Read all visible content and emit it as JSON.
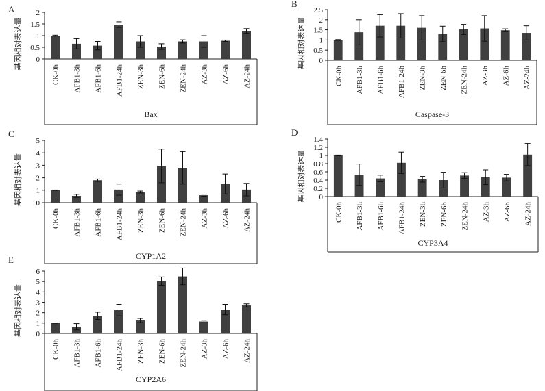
{
  "figure": {
    "colors": {
      "bar": "#404040",
      "axis": "#222222",
      "text": "#222222",
      "background": "#ffffff"
    }
  },
  "chart_data": [
    {
      "type": "bar",
      "panel_label": "A",
      "title": "Bax",
      "ylabel": "基因相对表达量",
      "xlabel": "",
      "ylim": [
        0,
        2
      ],
      "yticks": [
        0,
        0.5,
        1,
        1.5,
        2
      ],
      "ytick_labels": [
        "0",
        "0.5",
        "1",
        "1.5",
        "2"
      ],
      "categories": [
        "CK-0h",
        "AFB1-3h",
        "AFB1-6h",
        "AFB1-24h",
        "ZEN-3h",
        "ZEN-6h",
        "ZEN-24h",
        "AZ-3h",
        "AZ-6h",
        "AZ-24h"
      ],
      "values": [
        1.0,
        0.65,
        0.57,
        1.47,
        0.75,
        0.53,
        0.75,
        0.75,
        0.78,
        1.2
      ],
      "errors": [
        0.02,
        0.22,
        0.18,
        0.12,
        0.25,
        0.12,
        0.07,
        0.25,
        0.03,
        0.1
      ],
      "grid": false
    },
    {
      "type": "bar",
      "panel_label": "B",
      "title": "Caspase-3",
      "ylabel": "基因相对表达量",
      "xlabel": "",
      "ylim": [
        0,
        2.5
      ],
      "yticks": [
        0,
        0.5,
        1,
        1.5,
        2,
        2.5
      ],
      "ytick_labels": [
        "0",
        "0.5",
        "1",
        "1.5",
        "2",
        "2.5"
      ],
      "categories": [
        "CK-0h",
        "AFB1-3h",
        "AFB1-6h",
        "AFB1-24h",
        "ZEN-3h",
        "ZEN-6h",
        "ZEN-24h",
        "AZ-3h",
        "AZ-6h",
        "AZ-24h"
      ],
      "values": [
        1.0,
        1.38,
        1.7,
        1.7,
        1.6,
        1.3,
        1.52,
        1.57,
        1.48,
        1.35
      ],
      "errors": [
        0.02,
        0.62,
        0.55,
        0.6,
        0.6,
        0.38,
        0.25,
        0.63,
        0.07,
        0.35
      ],
      "grid": false
    },
    {
      "type": "bar",
      "panel_label": "C",
      "title": "CYP1A2",
      "ylabel": "基因相对表达量",
      "xlabel": "",
      "ylim": [
        0,
        5
      ],
      "yticks": [
        0,
        1,
        2,
        3,
        4,
        5
      ],
      "ytick_labels": [
        "0",
        "1",
        "2",
        "3",
        "4",
        "5"
      ],
      "categories": [
        "CK-0h",
        "AFB1-3h",
        "AFB1-6h",
        "AFB1-24h",
        "ZEN-3h",
        "ZEN-6h",
        "ZEN-24h",
        "AZ-3h",
        "AZ-6h",
        "AZ-24h"
      ],
      "values": [
        1.0,
        0.55,
        1.8,
        1.05,
        0.85,
        2.95,
        2.8,
        0.6,
        1.5,
        1.05
      ],
      "errors": [
        0.02,
        0.12,
        0.1,
        0.45,
        0.08,
        1.35,
        1.3,
        0.08,
        0.8,
        0.5
      ],
      "grid": false
    },
    {
      "type": "bar",
      "panel_label": "D",
      "title": "CYP3A4",
      "ylabel": "基因相对表达量",
      "xlabel": "",
      "ylim": [
        0,
        1.4
      ],
      "yticks": [
        0,
        0.2,
        0.4,
        0.6,
        0.8,
        1,
        1.2,
        1.4
      ],
      "ytick_labels": [
        "0",
        "0.2",
        "0.4",
        "0.6",
        "0.8",
        "1",
        "1.2",
        "1.4"
      ],
      "categories": [
        "CK-0h",
        "AFB1-3h",
        "AFB1-6h",
        "AFB1-24h",
        "ZEN-3h",
        "ZEN-6h",
        "ZEN-24h",
        "AZ-3h",
        "AZ-6h",
        "AZ-24h"
      ],
      "values": [
        1.0,
        0.53,
        0.44,
        0.82,
        0.42,
        0.4,
        0.51,
        0.47,
        0.46,
        1.02
      ],
      "errors": [
        0.01,
        0.26,
        0.08,
        0.26,
        0.07,
        0.19,
        0.07,
        0.18,
        0.08,
        0.27
      ],
      "grid": false
    },
    {
      "type": "bar",
      "panel_label": "E",
      "title": "CYP2A6",
      "ylabel": "基因相对表达量",
      "xlabel": "",
      "ylim": [
        0,
        6
      ],
      "yticks": [
        0,
        1,
        2,
        3,
        4,
        5,
        6
      ],
      "ytick_labels": [
        "0",
        "1",
        "2",
        "3",
        "4",
        "5",
        "6"
      ],
      "categories": [
        "CK-0h",
        "AFB1-3h",
        "AFB1-6h",
        "AFB1-24h",
        "ZEN-3h",
        "ZEN-6h",
        "ZEN-24h",
        "AZ-3h",
        "AZ-6h",
        "AZ-24h"
      ],
      "values": [
        1.0,
        0.65,
        1.7,
        2.25,
        1.25,
        5.05,
        5.5,
        1.15,
        2.3,
        2.7
      ],
      "errors": [
        0.02,
        0.3,
        0.35,
        0.55,
        0.2,
        0.4,
        0.8,
        0.12,
        0.5,
        0.15
      ],
      "grid": false
    }
  ]
}
